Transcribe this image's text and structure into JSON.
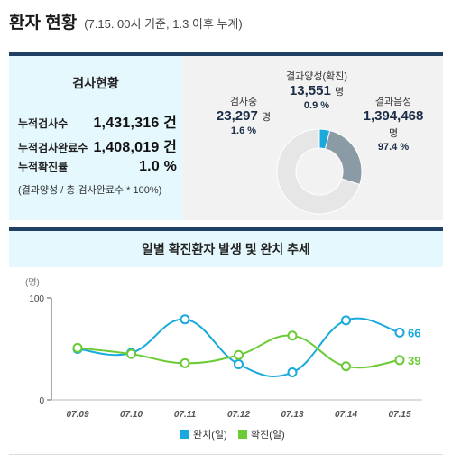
{
  "header": {
    "title": "환자 현황",
    "subtitle": "(7.15. 00시 기준, 1.3 이후 누계)"
  },
  "test_summary": {
    "title": "검사현황",
    "rows": [
      {
        "label": "누적검사수",
        "value": "1,431,316 건"
      },
      {
        "label": "누적검사완료수",
        "value": "1,408,019 건"
      },
      {
        "label": "누적확진률",
        "value": "1.0 %"
      }
    ],
    "note": "(결과양성 / 총 검사완료수 * 100%)"
  },
  "donut": {
    "positive": {
      "label": "결과양성(확진)",
      "count": "13,551",
      "unit": "명",
      "pct": "0.9 %"
    },
    "testing": {
      "label": "검사중",
      "count": "23,297",
      "unit": "명",
      "pct": "1.6 %"
    },
    "negative": {
      "label": "결과음성",
      "count": "1,394,468",
      "unit": "명",
      "pct": "97.4 %"
    },
    "colors": {
      "positive": "#19a9dc",
      "testing": "#8a9ba6",
      "negative": "#e6e6e6"
    }
  },
  "chart_data": [
    {
      "type": "pie",
      "categories": [
        "결과양성(확진)",
        "검사중",
        "결과음성"
      ],
      "values": [
        0.9,
        1.6,
        97.4
      ]
    },
    {
      "type": "line",
      "title": "일별 확진환자 발생 및 완치 추세",
      "ylabel": "(명)",
      "ylim": [
        0,
        100
      ],
      "yticks": [
        0,
        100
      ],
      "categories": [
        "07.09",
        "07.10",
        "07.11",
        "07.12",
        "07.13",
        "07.14",
        "07.15"
      ],
      "series": [
        {
          "name": "완치(일)",
          "color": "#19a9dc",
          "values": [
            50,
            46,
            79,
            35,
            27,
            78,
            66
          ]
        },
        {
          "name": "확진(일)",
          "color": "#6acb34",
          "values": [
            51,
            45,
            36,
            44,
            63,
            33,
            39
          ]
        }
      ],
      "end_labels": [
        "66",
        "39"
      ],
      "legend": "bottom-center",
      "grid": false
    }
  ]
}
